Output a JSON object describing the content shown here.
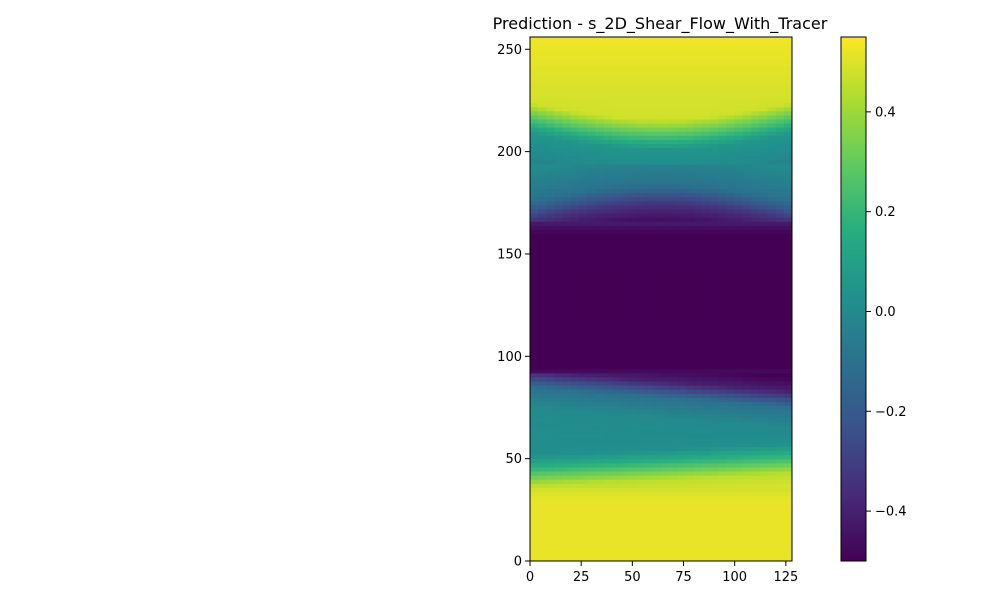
{
  "chart_data": {
    "type": "heatmap",
    "title": "Prediction - s_2D_Shear_Flow_With_Tracer",
    "xlabel": "",
    "ylabel": "",
    "xlim": [
      0,
      128
    ],
    "ylim": [
      0,
      256
    ],
    "x_ticks": [
      0,
      25,
      50,
      75,
      100,
      125
    ],
    "x_tick_labels": [
      "0",
      "25",
      "50",
      "75",
      "100",
      "125"
    ],
    "y_ticks": [
      0,
      50,
      100,
      150,
      200,
      250
    ],
    "y_tick_labels": [
      "0",
      "50",
      "100",
      "150",
      "200",
      "250"
    ],
    "colormap": "viridis",
    "colorbar": {
      "vmin": -0.5,
      "vmax": 0.55,
      "ticks": [
        -0.4,
        -0.2,
        0.0,
        0.2,
        0.4
      ],
      "tick_labels": [
        "−0.4",
        "−0.2",
        "0.0",
        "0.2",
        "0.4"
      ]
    },
    "grid": false,
    "field_description": "Horizontal shear bands: high (~0.55) for y<40 and y>220, low (~-0.5) for 90<y<165, transition bands (~0.0) near y≈60 and y≈195 with mild x-dependent shape",
    "rows": [
      {
        "y": 0,
        "value": 0.52
      },
      {
        "y": 30,
        "value": 0.52
      },
      {
        "y": 40,
        "value": 0.45
      },
      {
        "y": 48,
        "value": 0.2
      },
      {
        "y": 55,
        "value": 0.02
      },
      {
        "y": 70,
        "value": 0.0
      },
      {
        "y": 80,
        "value": -0.1
      },
      {
        "y": 88,
        "value": -0.4
      },
      {
        "y": 95,
        "value": -0.5
      },
      {
        "y": 160,
        "value": -0.5
      },
      {
        "y": 170,
        "value": -0.35
      },
      {
        "y": 180,
        "value": -0.1
      },
      {
        "y": 195,
        "value": 0.0
      },
      {
        "y": 205,
        "value": 0.05
      },
      {
        "y": 212,
        "value": 0.25
      },
      {
        "y": 220,
        "value": 0.48
      },
      {
        "y": 256,
        "value": 0.53
      }
    ]
  }
}
